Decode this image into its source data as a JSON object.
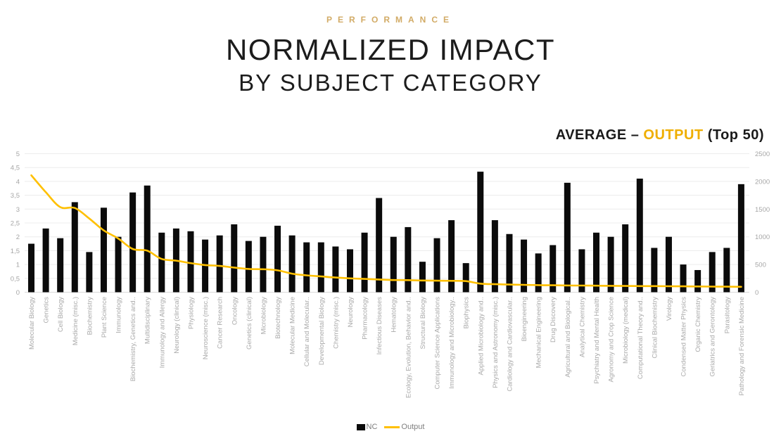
{
  "header": {
    "eyebrow": "PERFORMANCE",
    "title": "NORMALIZED IMPACT",
    "subtitle": "BY SUBJECT CATEGORY"
  },
  "caption": {
    "prefix": "AVERAGE – ",
    "highlight": "OUTPUT",
    "suffix": " (Top 50)"
  },
  "legend": {
    "nc_label": "NC",
    "output_label": "Output"
  },
  "colors": {
    "bar": "#0b0b0b",
    "line": "#ffc000",
    "axis_text": "#a6a6a6",
    "x_label_text": "#a9a9a9",
    "gridline": "#ececec",
    "axis_line": "#d9d9d9",
    "eyebrow_gold": "#d2ab66",
    "caption_highlight": "#efae00"
  },
  "chart_data": {
    "type": "combo (bar + line)",
    "title": "NORMALIZED IMPACT BY SUBJECT CATEGORY",
    "grid": true,
    "legend_position": "bottom",
    "categories": [
      "Molecular Biology",
      "Genetics",
      "Cell Biology",
      "Medicine (misc.)",
      "Biochemistry",
      "Plant Science",
      "Immunology",
      "Biochemistry, Genetics and..",
      "Multidisciplinary",
      "Immunology and Allergy",
      "Neurology (clinical)",
      "Physiology",
      "Neuroscience (misc.)",
      "Cancer Research",
      "Oncology",
      "Genetics (clinical)",
      "Microbiology",
      "Biotechnology",
      "Molecular Medicine",
      "Cellular and Molecular..",
      "Developmental Biology",
      "Chemistry (misc.)",
      "Neurology",
      "Pharmacology",
      "Infectious Diseases",
      "Hematology",
      "Ecology, Evolution, Behavior and..",
      "Structural Biology",
      "Computer Science Applications",
      "Immunology and Microbiology..",
      "Biophysics",
      "Applied Microbiology and..",
      "Physics and Astronomy (misc.)",
      "Cardiology and Cardiovascular..",
      "Bioengineering",
      "Mechanical Engineering",
      "Drug Discovery",
      "Agricultural and Biological..",
      "Analytical Chemistry",
      "Psychiatry and Mental Health",
      "Agronomy and Crop Science",
      "Microbiology (medical)",
      "Computational Theory and..",
      "Clinical Biochemistry",
      "Virology",
      "Condensed Matter Physics",
      "Organic Chemistry",
      "Geriatrics and Gerontology",
      "Parasitology",
      "Pathology and Forensic Medicine"
    ],
    "series": [
      {
        "name": "NC",
        "type": "bar",
        "axis": "left",
        "color": "#0b0b0b",
        "values": [
          1.75,
          2.3,
          1.95,
          3.25,
          1.45,
          3.05,
          2.0,
          3.6,
          3.85,
          2.15,
          2.3,
          2.2,
          1.9,
          2.05,
          2.45,
          1.85,
          2.0,
          2.4,
          2.05,
          1.8,
          1.8,
          1.65,
          1.55,
          2.15,
          3.4,
          2.0,
          2.35,
          1.1,
          1.95,
          2.6,
          1.05,
          4.35,
          2.6,
          2.1,
          1.9,
          1.4,
          1.7,
          3.95,
          1.55,
          2.15,
          2.0,
          2.45,
          4.1,
          1.6,
          2.0,
          1.0,
          0.8,
          1.45,
          1.6,
          3.9
        ]
      },
      {
        "name": "Output",
        "type": "line",
        "axis": "right",
        "color": "#ffc000",
        "values": [
          2110,
          1805,
          1535,
          1520,
          1330,
          1115,
          970,
          780,
          750,
          600,
          570,
          525,
          490,
          475,
          445,
          420,
          415,
          395,
          335,
          305,
          285,
          265,
          250,
          240,
          230,
          220,
          218,
          212,
          208,
          205,
          200,
          155,
          145,
          138,
          133,
          128,
          125,
          122,
          120,
          118,
          115,
          113,
          111,
          110,
          108,
          106,
          104,
          102,
          100,
          98
        ]
      }
    ],
    "left_axis": {
      "min": 0,
      "max": 5,
      "step": 0.5,
      "tick_labels": [
        "5",
        "4,5",
        "4",
        "3,5",
        "3",
        "2,5",
        "2",
        "1,5",
        "1",
        "0,5",
        "0"
      ]
    },
    "right_axis": {
      "min": 0,
      "max": 2500,
      "step": 500,
      "tick_labels": [
        "2500",
        "2000",
        "1500",
        "1000",
        "500",
        "0"
      ]
    }
  }
}
